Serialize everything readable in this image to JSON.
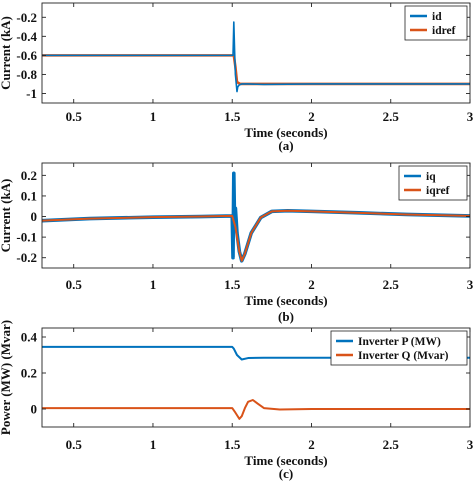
{
  "chart_data": [
    {
      "type": "line",
      "caption": "(a)",
      "xlabel": "Time (seconds)",
      "ylabel": "Current (kA)",
      "xlim": [
        0.3,
        3
      ],
      "ylim": [
        -1.1,
        -0.05
      ],
      "xticks": [
        "0.5",
        "1",
        "1.5",
        "2",
        "2.5",
        "3"
      ],
      "xtick_values": [
        0.5,
        1,
        1.5,
        2,
        2.5,
        3
      ],
      "yticks": [
        "-0.2",
        "-0.4",
        "-0.6",
        "-0.8",
        "-1"
      ],
      "ytick_values": [
        -0.2,
        -0.4,
        -0.6,
        -0.8,
        -1
      ],
      "grid": false,
      "legend": "top-right",
      "series": [
        {
          "name": "idref",
          "color": "#D95319",
          "width": 2.6,
          "x": [
            0.3,
            1.5,
            1.5,
            1.51,
            1.52,
            1.53,
            1.55,
            1.6,
            1.7,
            2.0,
            3.0
          ],
          "y": [
            -0.6,
            -0.6,
            -0.6,
            -0.6,
            -0.72,
            -0.88,
            -0.9,
            -0.9,
            -0.9,
            -0.9,
            -0.9
          ]
        },
        {
          "name": "id",
          "color": "#0072BD",
          "width": 1.6,
          "x": [
            0.3,
            1.49,
            1.5,
            1.505,
            1.51,
            1.515,
            1.52,
            1.53,
            1.535,
            1.545,
            1.56,
            1.6,
            1.7,
            2.0,
            3.0
          ],
          "y": [
            -0.6,
            -0.6,
            -0.6,
            -0.6,
            -0.25,
            -0.55,
            -0.8,
            -0.98,
            -0.93,
            -0.91,
            -0.9,
            -0.9,
            -0.905,
            -0.9,
            -0.9
          ]
        }
      ]
    },
    {
      "type": "line",
      "caption": "(b)",
      "xlabel": "Time (seconds)",
      "ylabel": "Current (kA)",
      "xlim": [
        0.3,
        3
      ],
      "ylim": [
        -0.25,
        0.26
      ],
      "xticks": [
        "0.5",
        "1",
        "1.5",
        "2",
        "2.5",
        "3"
      ],
      "xtick_values": [
        0.5,
        1,
        1.5,
        2,
        2.5,
        3
      ],
      "yticks": [
        "0.2",
        "0.1",
        "0",
        "-0.1",
        "-0.2"
      ],
      "ytick_values": [
        0.2,
        0.1,
        0,
        -0.1,
        -0.2
      ],
      "grid": false,
      "legend": "top-right",
      "series": [
        {
          "name": "iq",
          "color": "#0072BD",
          "width": 3.6,
          "x": [
            0.3,
            0.6,
            1.0,
            1.3,
            1.5,
            1.505,
            1.51,
            1.515,
            1.52,
            1.53,
            1.545,
            1.56,
            1.58,
            1.62,
            1.68,
            1.75,
            1.85,
            2.0,
            2.3,
            2.6,
            3.0
          ],
          "y": [
            -0.02,
            -0.01,
            -0.003,
            0.0,
            0.003,
            -0.2,
            0.21,
            -0.05,
            0.04,
            -0.08,
            -0.17,
            -0.215,
            -0.18,
            -0.08,
            -0.005,
            0.025,
            0.028,
            0.025,
            0.018,
            0.01,
            0.003
          ]
        },
        {
          "name": "iqref",
          "color": "#D95319",
          "width": 2.0,
          "x": [
            0.3,
            0.6,
            1.0,
            1.3,
            1.5,
            1.52,
            1.545,
            1.56,
            1.58,
            1.62,
            1.68,
            1.75,
            1.85,
            2.0,
            2.3,
            2.6,
            3.0
          ],
          "y": [
            -0.02,
            -0.01,
            -0.003,
            0.0,
            0.003,
            -0.05,
            -0.17,
            -0.215,
            -0.18,
            -0.08,
            -0.005,
            0.025,
            0.028,
            0.025,
            0.018,
            0.01,
            0.003
          ]
        }
      ]
    },
    {
      "type": "line",
      "caption": "(c)",
      "xlabel": "Time (seconds)",
      "ylabel": "Power (MW) (Mvar)",
      "xlim": [
        0.3,
        3
      ],
      "ylim": [
        -0.1,
        0.45
      ],
      "xticks": [
        "0.5",
        "1",
        "1.5",
        "2",
        "2.5",
        "3"
      ],
      "xtick_values": [
        0.5,
        1,
        1.5,
        2,
        2.5,
        3
      ],
      "yticks": [
        "0.4",
        "0.2",
        "0"
      ],
      "ytick_values": [
        0.4,
        0.2,
        0
      ],
      "grid": false,
      "legend": "top-right",
      "series": [
        {
          "name": "Inverter P (MW)",
          "color": "#0072BD",
          "width": 2.0,
          "x": [
            0.3,
            1.5,
            1.51,
            1.53,
            1.56,
            1.6,
            1.7,
            2.0,
            3.0
          ],
          "y": [
            0.345,
            0.345,
            0.335,
            0.3,
            0.275,
            0.283,
            0.285,
            0.285,
            0.285
          ],
          "style": "solid"
        },
        {
          "name": "Inverter Q (Mvar)",
          "color": "#D95319",
          "width": 2.0,
          "x": [
            0.3,
            1.5,
            1.52,
            1.545,
            1.56,
            1.58,
            1.6,
            1.63,
            1.66,
            1.7,
            1.8,
            2.0,
            3.0
          ],
          "y": [
            0.005,
            0.005,
            -0.02,
            -0.055,
            -0.04,
            0.005,
            0.04,
            0.05,
            0.03,
            0.005,
            -0.003,
            0.0,
            0.0
          ]
        }
      ]
    }
  ]
}
